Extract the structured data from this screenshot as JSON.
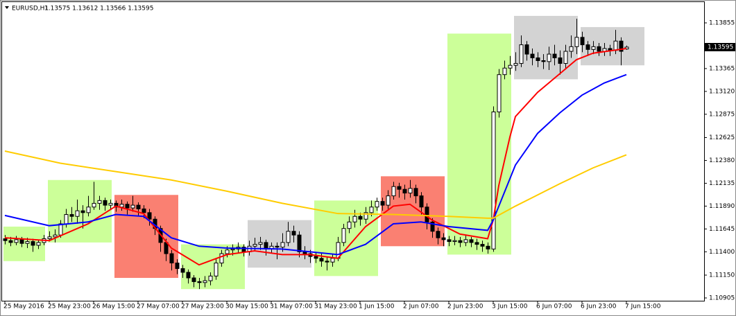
{
  "chart_data": {
    "type": "candlestick",
    "title": "EURUSD,H1",
    "subtitle": "1.13575 1.13612 1.13566 1.13595",
    "categories": [
      "25 May 2016",
      null,
      null,
      null,
      null,
      null,
      null,
      null,
      "25 May 23:00",
      null,
      null,
      null,
      null,
      null,
      null,
      null,
      "26 May 15:00",
      null,
      null,
      null,
      null,
      null,
      null,
      null,
      "27 May 07:00",
      null,
      null,
      null,
      null,
      null,
      null,
      null,
      "27 May 23:00",
      null,
      null,
      null,
      null,
      null,
      null,
      null,
      "30 May 15:00",
      null,
      null,
      null,
      null,
      null,
      null,
      null,
      "31 May 07:00",
      null,
      null,
      null,
      null,
      null,
      null,
      null,
      "31 May 23:00",
      null,
      null,
      null,
      null,
      null,
      null,
      null,
      "1 Jun 15:00",
      null,
      null,
      null,
      null,
      null,
      null,
      null,
      "2 Jun 07:00",
      null,
      null,
      null,
      null,
      null,
      null,
      null,
      "2 Jun 23:00",
      null,
      null,
      null,
      null,
      null,
      null,
      null,
      "3 Jun 15:00",
      null,
      null,
      null,
      null,
      null,
      null,
      null,
      "6 Jun 07:00",
      null,
      null,
      null,
      null,
      null,
      null,
      null,
      "6 Jun 23:00",
      null,
      null,
      null,
      null,
      null,
      null,
      null,
      "7 Jun 15:00"
    ],
    "open": [
      1.1154,
      1.1152,
      1.115,
      1.1153,
      1.1149,
      1.1151,
      1.1147,
      1.115,
      1.1154,
      1.1156,
      1.1158,
      1.117,
      1.118,
      1.1178,
      1.1184,
      1.1182,
      1.1188,
      1.1192,
      1.1195,
      1.119,
      1.1192,
      1.1188,
      1.1191,
      1.1187,
      1.119,
      1.1186,
      1.1182,
      1.1175,
      1.1165,
      1.115,
      1.1138,
      1.1128,
      1.1122,
      1.1118,
      1.1112,
      1.1108,
      1.1107,
      1.1109,
      1.1114,
      1.1128,
      1.1138,
      1.1142,
      1.1143,
      1.1145,
      1.114,
      1.1146,
      1.1148,
      1.115,
      1.1143,
      1.1146,
      1.1145,
      1.115,
      1.1162,
      1.1158,
      1.114,
      1.1138,
      1.1135,
      1.1133,
      1.113,
      1.1129,
      1.1133,
      1.115,
      1.1165,
      1.1172,
      1.1178,
      1.1175,
      1.1182,
      1.1188,
      1.1194,
      1.119,
      1.12,
      1.121,
      1.1207,
      1.1203,
      1.1208,
      1.12,
      1.1188,
      1.1172,
      1.1162,
      1.1155,
      1.1153,
      1.1151,
      1.1152,
      1.115,
      1.1153,
      1.115,
      1.1148,
      1.1146,
      1.1143,
      1.129,
      1.133,
      1.1337,
      1.134,
      1.1342,
      1.1362,
      1.1352,
      1.1348,
      1.1345,
      1.1344,
      1.1352,
      1.1348,
      1.1342,
      1.1355,
      1.136,
      1.137,
      1.1362,
      1.1357,
      1.136,
      1.1355,
      1.1358,
      1.1356,
      1.1366,
      1.13575
    ],
    "high": [
      1.1158,
      1.1156,
      1.1157,
      1.1156,
      1.1155,
      1.1154,
      1.1153,
      1.1158,
      1.1162,
      1.1164,
      1.1174,
      1.1186,
      1.1188,
      1.1196,
      1.119,
      1.12,
      1.1215,
      1.12,
      1.1198,
      1.1196,
      1.1195,
      1.1196,
      1.1194,
      1.12,
      1.1193,
      1.119,
      1.1186,
      1.1178,
      1.1168,
      1.1154,
      1.1142,
      1.1132,
      1.1126,
      1.1121,
      1.1115,
      1.1112,
      1.1114,
      1.1118,
      1.1132,
      1.1142,
      1.1146,
      1.1148,
      1.115,
      1.1148,
      1.1152,
      1.1155,
      1.1156,
      1.1153,
      1.115,
      1.115,
      1.116,
      1.1172,
      1.1168,
      1.1162,
      1.1146,
      1.1142,
      1.114,
      1.1138,
      1.1134,
      1.1138,
      1.1156,
      1.117,
      1.1178,
      1.1185,
      1.1182,
      1.1188,
      1.1195,
      1.1198,
      1.1198,
      1.1206,
      1.1215,
      1.1214,
      1.1212,
      1.1217,
      1.1212,
      1.1204,
      1.1192,
      1.1176,
      1.1166,
      1.116,
      1.1157,
      1.1157,
      1.1156,
      1.1158,
      1.1156,
      1.1154,
      1.1152,
      1.115,
      1.1296,
      1.1336,
      1.1345,
      1.135,
      1.1354,
      1.1372,
      1.1366,
      1.1358,
      1.1354,
      1.1352,
      1.136,
      1.1362,
      1.1356,
      1.1362,
      1.1372,
      1.139,
      1.1376,
      1.1366,
      1.1366,
      1.1364,
      1.1364,
      1.1362,
      1.1378,
      1.137,
      1.13612
    ],
    "low": [
      1.1148,
      1.1146,
      1.1147,
      1.1145,
      1.1144,
      1.114,
      1.1143,
      1.1147,
      1.1151,
      1.115,
      1.1155,
      1.1166,
      1.1172,
      1.117,
      1.1165,
      1.1178,
      1.1185,
      1.1185,
      1.1184,
      1.1186,
      1.1183,
      1.1184,
      1.118,
      1.1183,
      1.1178,
      1.1176,
      1.1168,
      1.1158,
      1.114,
      1.113,
      1.112,
      1.1116,
      1.1112,
      1.1106,
      1.1102,
      1.11,
      1.1102,
      1.1104,
      1.111,
      1.1124,
      1.1134,
      1.1136,
      1.1138,
      1.1135,
      1.1136,
      1.1141,
      1.1142,
      1.1136,
      1.1138,
      1.1132,
      1.114,
      1.1146,
      1.115,
      1.1134,
      1.1132,
      1.1128,
      1.1128,
      1.1124,
      1.112,
      1.1124,
      1.113,
      1.1146,
      1.116,
      1.1166,
      1.1168,
      1.117,
      1.1178,
      1.1184,
      1.1184,
      1.1186,
      1.1196,
      1.1198,
      1.1196,
      1.1198,
      1.1192,
      1.118,
      1.1164,
      1.1155,
      1.1148,
      1.1146,
      1.1146,
      1.1147,
      1.1145,
      1.1146,
      1.1145,
      1.1142,
      1.114,
      1.1138,
      1.114,
      1.1284,
      1.1325,
      1.133,
      1.1334,
      1.1338,
      1.1345,
      1.134,
      1.1338,
      1.1336,
      1.1335,
      1.134,
      1.133,
      1.1336,
      1.1348,
      1.1352,
      1.1354,
      1.135,
      1.1352,
      1.135,
      1.135,
      1.135,
      1.1352,
      1.134,
      1.13566
    ],
    "close": [
      1.1152,
      1.115,
      1.1153,
      1.1149,
      1.1151,
      1.1147,
      1.115,
      1.1154,
      1.1156,
      1.1158,
      1.117,
      1.118,
      1.1178,
      1.1184,
      1.1182,
      1.1188,
      1.1192,
      1.1195,
      1.119,
      1.1192,
      1.1188,
      1.1191,
      1.1187,
      1.119,
      1.1186,
      1.1182,
      1.1175,
      1.1165,
      1.115,
      1.1138,
      1.1128,
      1.1122,
      1.1118,
      1.1112,
      1.1108,
      1.1107,
      1.1109,
      1.1114,
      1.1128,
      1.1138,
      1.1142,
      1.1143,
      1.1145,
      1.114,
      1.1146,
      1.1148,
      1.115,
      1.1143,
      1.1146,
      1.1145,
      1.115,
      1.1162,
      1.1158,
      1.114,
      1.1138,
      1.1135,
      1.1133,
      1.113,
      1.1129,
      1.1133,
      1.115,
      1.1165,
      1.1172,
      1.1178,
      1.1175,
      1.1182,
      1.1188,
      1.1194,
      1.119,
      1.12,
      1.121,
      1.1207,
      1.1203,
      1.1208,
      1.12,
      1.1188,
      1.1172,
      1.1162,
      1.1155,
      1.1153,
      1.1151,
      1.1152,
      1.115,
      1.1153,
      1.115,
      1.1148,
      1.1146,
      1.1143,
      1.129,
      1.133,
      1.1337,
      1.134,
      1.1342,
      1.1362,
      1.1352,
      1.1348,
      1.1345,
      1.1344,
      1.1352,
      1.1348,
      1.1342,
      1.1355,
      1.136,
      1.137,
      1.1362,
      1.1357,
      1.136,
      1.1355,
      1.1358,
      1.1356,
      1.1366,
      1.1355,
      1.13595
    ],
    "ma_lines": [
      {
        "color": "#ff0000",
        "x": [
          0,
          8,
          15,
          20,
          25,
          30,
          35,
          40,
          45,
          50,
          55,
          60,
          65,
          70,
          73,
          77,
          82,
          87,
          88,
          89,
          90,
          91,
          92,
          96,
          100,
          103,
          106,
          112
        ],
        "values": [
          1.1155,
          1.1152,
          1.117,
          1.1189,
          1.1181,
          1.1144,
          1.1126,
          1.1137,
          1.1141,
          1.1137,
          1.1137,
          1.1133,
          1.1167,
          1.1189,
          1.1191,
          1.1174,
          1.1159,
          1.1154,
          1.1174,
          1.1211,
          1.1237,
          1.1263,
          1.1285,
          1.1311,
          1.1331,
          1.1346,
          1.1353,
          1.1358
        ]
      },
      {
        "color": "#0000ff",
        "x": [
          0,
          8,
          15,
          20,
          25,
          30,
          35,
          40,
          50,
          60,
          65,
          70,
          75,
          80,
          87,
          88,
          92,
          96,
          100,
          104,
          108,
          112
        ],
        "values": [
          1.1179,
          1.1168,
          1.1172,
          1.118,
          1.1178,
          1.1155,
          1.1146,
          1.1144,
          1.1143,
          1.1137,
          1.1148,
          1.117,
          1.1172,
          1.1167,
          1.1163,
          1.1174,
          1.1233,
          1.1267,
          1.1289,
          1.1308,
          1.1321,
          1.133
        ]
      },
      {
        "color": "#ffcc00",
        "x": [
          0,
          10,
          20,
          30,
          40,
          50,
          60,
          70,
          80,
          87,
          88,
          92,
          100,
          106,
          112
        ],
        "values": [
          1.1248,
          1.1235,
          1.1226,
          1.1217,
          1.1205,
          1.1192,
          1.1181,
          1.118,
          1.1178,
          1.1176,
          1.1176,
          1.1189,
          1.1213,
          1.123,
          1.1244
        ]
      }
    ],
    "zones": [
      {
        "from": 0,
        "to": 7,
        "low": 1.113,
        "high": 1.1167,
        "color": "#ccff99"
      },
      {
        "from": 8,
        "to": 19,
        "low": 1.115,
        "high": 1.1217,
        "color": "#ccff99"
      },
      {
        "from": 20,
        "to": 31,
        "low": 1.1112,
        "high": 1.1201,
        "color": "#fa8072"
      },
      {
        "from": 32,
        "to": 43,
        "low": 1.11,
        "high": 1.1148,
        "color": "#ccff99"
      },
      {
        "from": 44,
        "to": 55,
        "low": 1.1123,
        "high": 1.1174,
        "color": "#d3d3d3"
      },
      {
        "from": 56,
        "to": 67,
        "low": 1.1114,
        "high": 1.1195,
        "color": "#ccff99"
      },
      {
        "from": 68,
        "to": 79,
        "low": 1.1146,
        "high": 1.1221,
        "color": "#fa8072"
      },
      {
        "from": 80,
        "to": 91,
        "low": 1.1137,
        "high": 1.1374,
        "color": "#ccff99"
      },
      {
        "from": 92,
        "to": 103,
        "low": 1.1325,
        "high": 1.1393,
        "color": "#d3d3d3"
      },
      {
        "from": 104,
        "to": 115,
        "low": 1.134,
        "high": 1.1381,
        "color": "#d3d3d3"
      }
    ],
    "price_label": 1.13595,
    "ylim": [
      1.10875,
      1.14078
    ],
    "yticks": [
      1.10905,
      {
        "value": 1.1115,
        "label": "1.11150"
      },
      {
        "value": 1.114,
        "label": "1.11400"
      },
      1.11645,
      {
        "value": 1.1189,
        "label": "1.11890"
      },
      1.12135,
      {
        "value": 1.1238,
        "label": "1.12380"
      },
      1.12625,
      1.12875,
      {
        "value": 1.1312,
        "label": "1.13120"
      },
      1.13365,
      1.13855
    ]
  }
}
